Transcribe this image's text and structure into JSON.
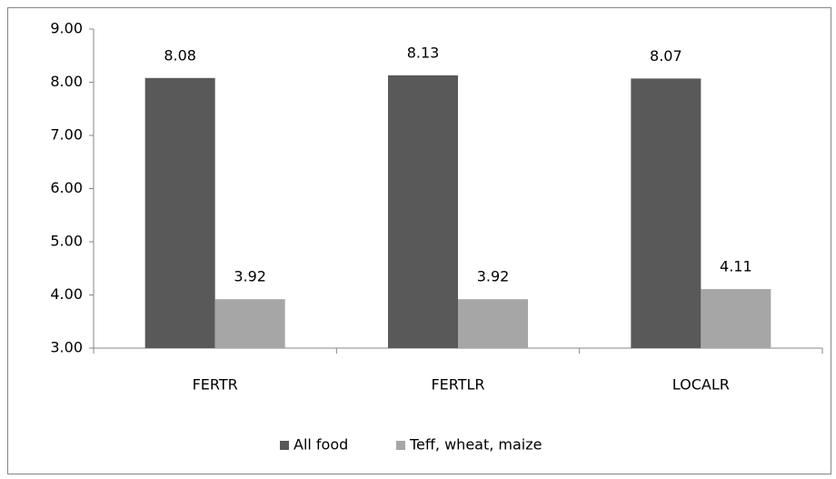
{
  "chart_data": {
    "type": "bar",
    "categories": [
      "FERTR",
      "FERTLR",
      "LOCALR"
    ],
    "series": [
      {
        "name": "All food",
        "color": "#595959",
        "values": [
          8.08,
          8.13,
          8.07
        ]
      },
      {
        "name": "Teff, wheat, maize",
        "color": "#a6a6a6",
        "values": [
          3.92,
          3.92,
          4.11
        ]
      }
    ],
    "ylim": [
      3,
      9
    ],
    "yticks": [
      {
        "value": 3,
        "label": "3.00"
      },
      {
        "value": 4,
        "label": "4.00"
      },
      {
        "value": 5,
        "label": "5.00"
      },
      {
        "value": 6,
        "label": "6.00"
      },
      {
        "value": 7,
        "label": "7.00"
      },
      {
        "value": 8,
        "label": "8.00"
      },
      {
        "value": 9,
        "label": "9.00"
      }
    ],
    "grid": false,
    "legend": "bottom"
  }
}
